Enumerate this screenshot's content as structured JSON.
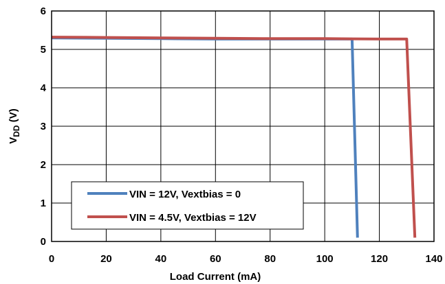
{
  "chart_data": {
    "type": "line",
    "xlabel": "Load Current (mA)",
    "ylabel_main": "V",
    "ylabel_sub": "DD",
    "ylabel_unit": " (V)",
    "xlim": [
      0,
      140
    ],
    "ylim": [
      0,
      6
    ],
    "x_ticks": [
      "0",
      "20",
      "40",
      "60",
      "80",
      "100",
      "120",
      "140"
    ],
    "y_ticks": [
      "0",
      "1",
      "2",
      "3",
      "4",
      "5",
      "6"
    ],
    "grid": true,
    "legend_position": "bottom-left",
    "series": [
      {
        "name": "VIN = 12V, Vextbias = 0",
        "color": "#4f81bd",
        "points": [
          [
            0,
            5.3
          ],
          [
            20,
            5.29
          ],
          [
            40,
            5.28
          ],
          [
            60,
            5.27
          ],
          [
            80,
            5.27
          ],
          [
            100,
            5.27
          ],
          [
            110,
            5.27
          ],
          [
            112,
            0.1
          ]
        ]
      },
      {
        "name": "VIN = 4.5V, Vextbias = 12V",
        "color": "#c0504d",
        "points": [
          [
            0,
            5.32
          ],
          [
            20,
            5.31
          ],
          [
            40,
            5.3
          ],
          [
            60,
            5.29
          ],
          [
            80,
            5.28
          ],
          [
            100,
            5.28
          ],
          [
            120,
            5.27
          ],
          [
            130,
            5.27
          ],
          [
            133,
            0.1
          ]
        ]
      }
    ]
  }
}
